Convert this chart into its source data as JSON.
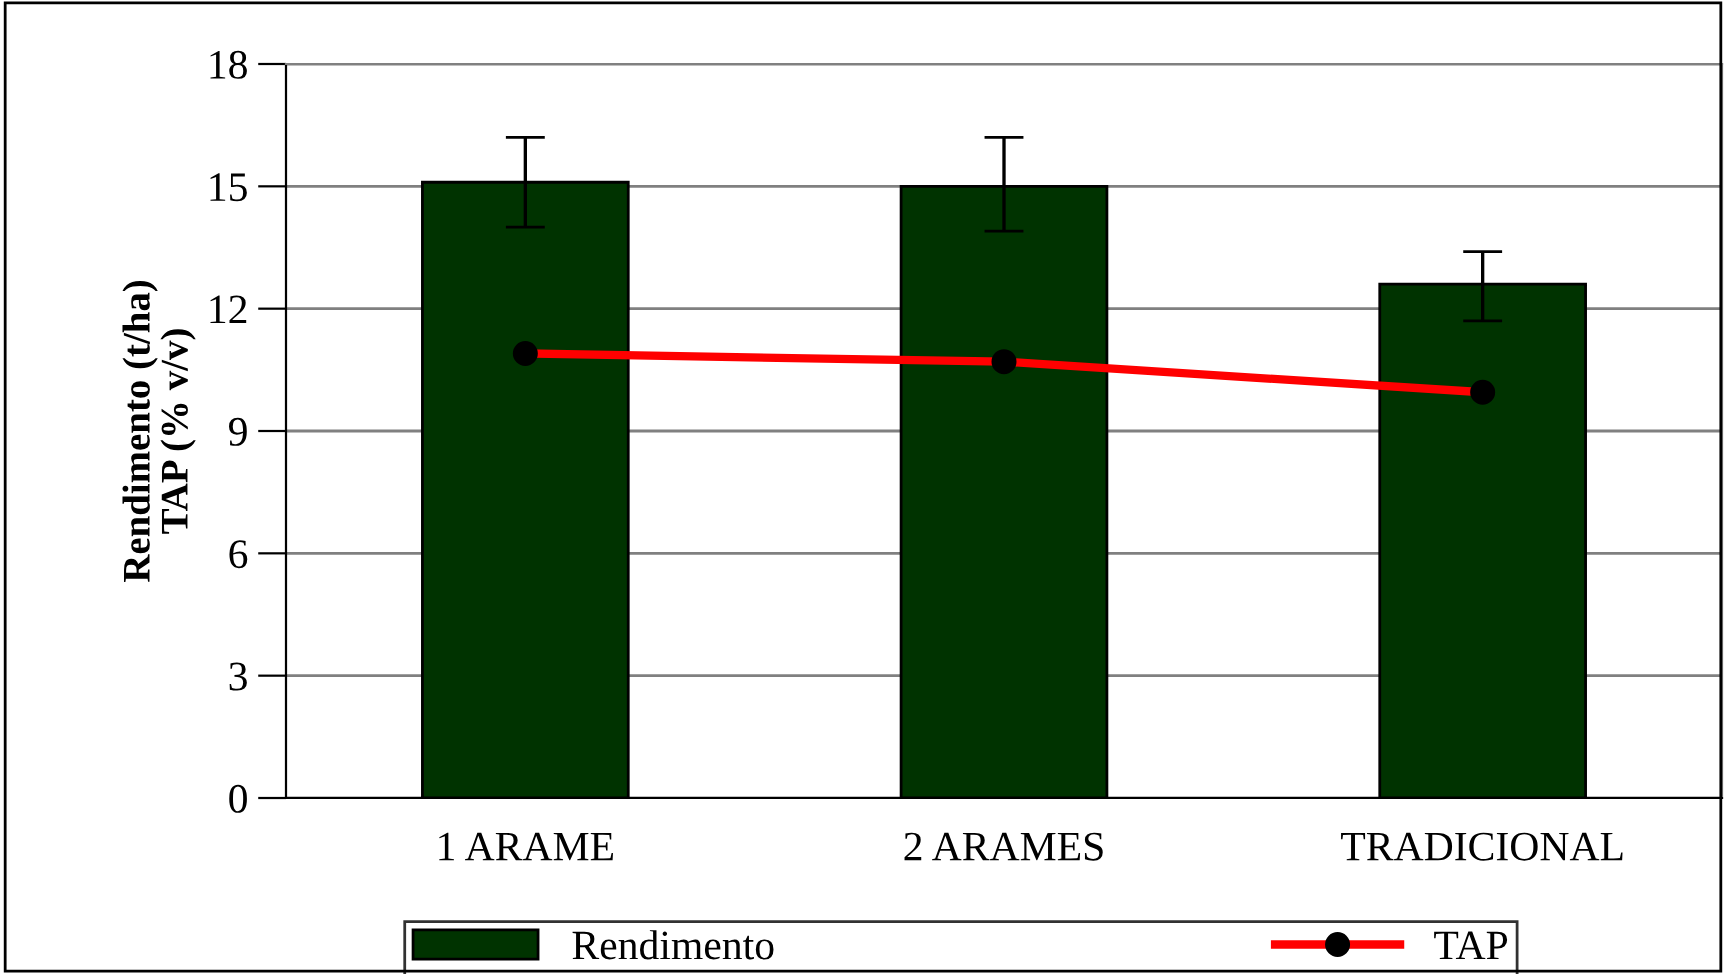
{
  "chart_data": {
    "type": "bar",
    "ylabel": "Rendimento (t/ha)\nTAP (% v/v)",
    "categories": [
      "1 ARAME",
      "2 ARAMES",
      "TRADICIONAL"
    ],
    "series": [
      {
        "name": "Rendimento",
        "color": "#003300",
        "values": [
          15.1,
          15.0,
          12.6
        ],
        "errors": [
          [
            14.0,
            16.2
          ],
          [
            13.9,
            16.2
          ],
          [
            11.7,
            13.4
          ]
        ]
      },
      {
        "name": "TAP",
        "type": "line",
        "color": "#ff0000",
        "values": [
          10.9,
          10.7,
          9.95
        ],
        "marker": "circle"
      }
    ],
    "ylim": [
      0,
      18
    ],
    "yticks": [
      0,
      3,
      6,
      9,
      12,
      15,
      18
    ],
    "grid": "y",
    "legend": "bottom"
  }
}
